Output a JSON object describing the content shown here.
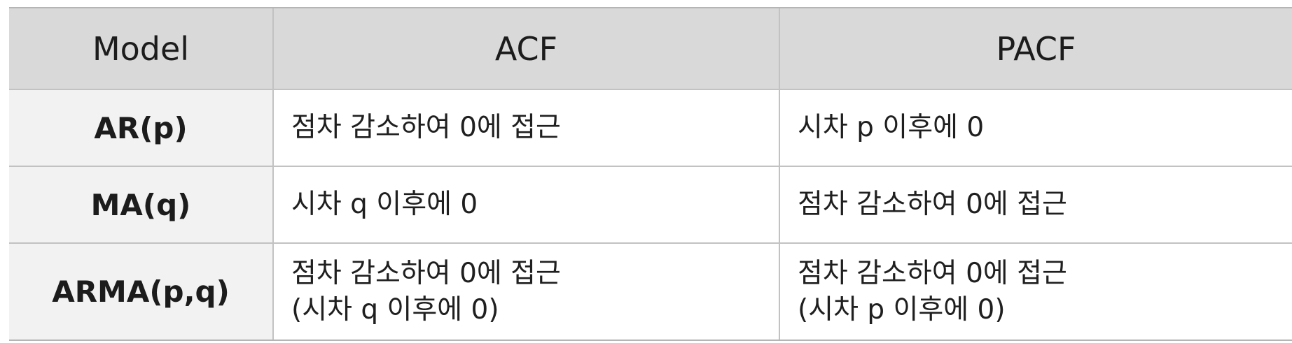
{
  "table": {
    "headers": {
      "model": "Model",
      "acf": "ACF",
      "pacf": "PACF"
    },
    "rows": [
      {
        "model": "AR(p)",
        "acf": [
          "점차 감소하여 0에 접근"
        ],
        "pacf": [
          "시차 p 이후에 0"
        ]
      },
      {
        "model": "MA(q)",
        "acf": [
          "시차 q 이후에 0"
        ],
        "pacf": [
          "점차 감소하여 0에 접근"
        ]
      },
      {
        "model": "ARMA(p,q)",
        "acf": [
          "점차 감소하여 0에 접근",
          "(시차 q 이후에 0)"
        ],
        "pacf": [
          "점차 감소하여 0에 접근",
          "(시차 p 이후에 0)"
        ]
      }
    ]
  },
  "colors": {
    "header_bg": "#d9d9d9",
    "model_col_bg": "#f2f2f2",
    "grid_line": "#c2c2c2",
    "text": "#1c1c1c"
  }
}
